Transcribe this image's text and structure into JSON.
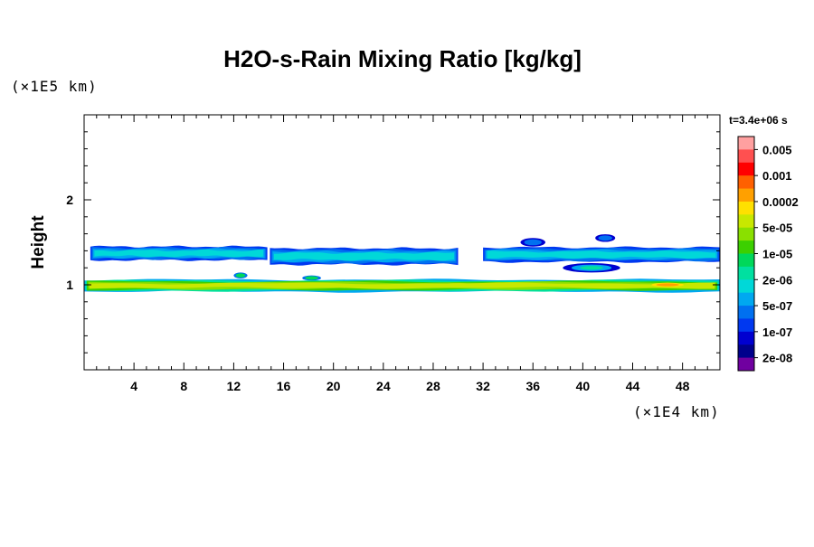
{
  "chart_data": {
    "type": "heatmap",
    "title": "H2O-s-Rain Mixing Ratio [kg/kg]",
    "ylabel": "Height",
    "xlabel": "",
    "x_unit": "(×1E4 km)",
    "y_unit": "(×1E5 km)",
    "time_label": "t=3.4e+06 s",
    "xlim": [
      0,
      51
    ],
    "ylim": [
      0,
      3
    ],
    "x_ticks": [
      4,
      8,
      12,
      16,
      20,
      24,
      28,
      32,
      36,
      40,
      44,
      48
    ],
    "x_tick_labels": [
      "4",
      "8",
      "12",
      "16",
      "20",
      "24",
      "28",
      "32",
      "36",
      "40",
      "44",
      "48"
    ],
    "y_ticks": [
      1,
      2
    ],
    "y_tick_labels": [
      "1",
      "2"
    ],
    "colorbar": {
      "colors": [
        "#FFA0A0",
        "#FF5050",
        "#FF0000",
        "#FF6000",
        "#FFA000",
        "#FFE000",
        "#C8E800",
        "#8AE000",
        "#3CD000",
        "#00D85A",
        "#00E0A0",
        "#00D8D8",
        "#00A8F0",
        "#0070F0",
        "#0038F0",
        "#0000D0",
        "#00008C",
        "#7000A0"
      ],
      "labels": [
        "0.005",
        "0.001",
        "0.0002",
        "5e-05",
        "1e-05",
        "2e-06",
        "5e-07",
        "1e-07",
        "2e-08"
      ]
    },
    "bands": [
      {
        "segments": [
          {
            "x0": 0.5,
            "x1": 14.7,
            "top": 1.45,
            "bottom": 1.29
          },
          {
            "x0": 14.9,
            "x1": 30.0,
            "top": 1.43,
            "bottom": 1.24
          },
          {
            "x0": 32.0,
            "x1": 51.0,
            "top": 1.44,
            "bottom": 1.27
          }
        ],
        "levels": [
          14,
          13,
          12,
          11
        ]
      },
      {
        "segments": [
          {
            "x0": 0,
            "x1": 51.0,
            "top": 1.06,
            "bottom": 0.92
          }
        ],
        "levels": [
          12,
          10,
          8,
          7,
          6
        ]
      }
    ],
    "patches": [
      {
        "x": 38.4,
        "y": 1.2,
        "w": 4.6,
        "h": 0.11,
        "levels": [
          15,
          12,
          10
        ]
      },
      {
        "x": 35.0,
        "y": 1.5,
        "w": 2.0,
        "h": 0.1,
        "levels": [
          15,
          13
        ]
      },
      {
        "x": 41.0,
        "y": 1.55,
        "w": 1.6,
        "h": 0.09,
        "levels": [
          15,
          13
        ]
      },
      {
        "x": 12.0,
        "y": 1.11,
        "w": 1.1,
        "h": 0.07,
        "levels": [
          13,
          9
        ]
      },
      {
        "x": 17.5,
        "y": 1.08,
        "w": 1.5,
        "h": 0.06,
        "levels": [
          13,
          9
        ]
      },
      {
        "x": 45.5,
        "y": 1.0,
        "w": 2.6,
        "h": 0.05,
        "levels": [
          5,
          4
        ]
      },
      {
        "x": 29.0,
        "y": 1.0,
        "w": 2.0,
        "h": 0.04,
        "levels": [
          6
        ]
      },
      {
        "x": 12.5,
        "y": 0.995,
        "w": 1.2,
        "h": 0.04,
        "levels": [
          6
        ]
      }
    ]
  }
}
